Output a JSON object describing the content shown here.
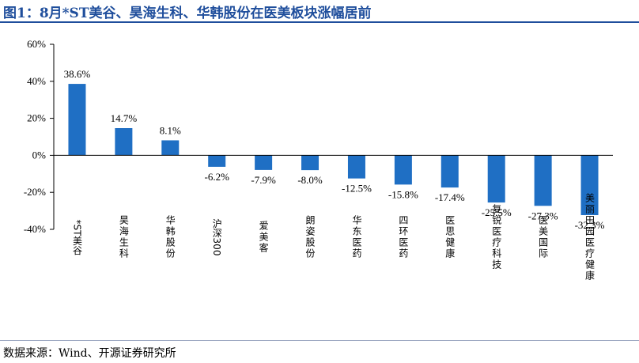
{
  "header": {
    "title": "图1：8月*ST美谷、昊海生科、华韩股份在医美板块涨幅居前"
  },
  "footer": {
    "source": "数据来源：Wind、开源证券研究所"
  },
  "colors": {
    "bar": "#1f6fc4",
    "title": "#1f4e9c",
    "axis": "#000000"
  },
  "chart_data": {
    "type": "bar",
    "title": "",
    "xlabel": "",
    "ylabel": "",
    "ylim": [
      -40,
      60
    ],
    "yticks": [
      60,
      40,
      20,
      0,
      -20,
      -40
    ],
    "ytick_labels": [
      "60%",
      "40%",
      "20%",
      "0%",
      "-20%",
      "-40%"
    ],
    "grid": false,
    "legend": "none",
    "categories": [
      "*ST美谷",
      "昊海生科",
      "华韩股份",
      "沪深300",
      "爱美客",
      "朗姿股份",
      "华东医药",
      "四环医药",
      "医思健康",
      "复锐医疗科技",
      "医美国际",
      "美丽田园医疗健康"
    ],
    "values": [
      38.6,
      14.7,
      8.1,
      -6.2,
      -7.9,
      -8.0,
      -12.5,
      -15.8,
      -17.4,
      -25.5,
      -27.3,
      -32.3
    ],
    "value_labels": [
      "38.6%",
      "14.7%",
      "8.1%",
      "-6.2%",
      "-7.9%",
      "-8.0%",
      "-12.5%",
      "-15.8%",
      "-17.4%",
      "-25.5%",
      "-27.3%",
      "-32.3%"
    ]
  }
}
